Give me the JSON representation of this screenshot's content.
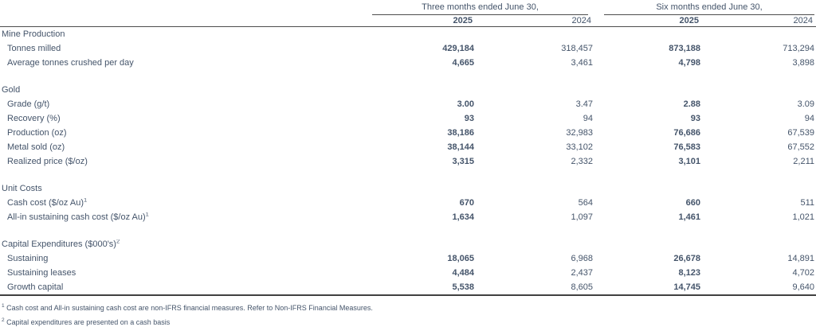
{
  "table": {
    "col_groups": [
      {
        "label": "Three months ended June 30,"
      },
      {
        "label": "Six months ended June 30,"
      }
    ],
    "year_headers": [
      "2025",
      "2024",
      "2025",
      "2024"
    ],
    "sections": [
      {
        "header": "Mine Production",
        "rows": [
          {
            "label": "Tonnes milled",
            "values": [
              "429,184",
              "318,457",
              "873,188",
              "713,294"
            ]
          },
          {
            "label": "Average tonnes crushed per day",
            "values": [
              "4,665",
              "3,461",
              "4,798",
              "3,898"
            ]
          }
        ]
      },
      {
        "header": "Gold",
        "rows": [
          {
            "label": "Grade (g/t)",
            "values": [
              "3.00",
              "3.47",
              "2.88",
              "3.09"
            ]
          },
          {
            "label": "Recovery (%)",
            "values": [
              "93",
              "94",
              "93",
              "94"
            ]
          },
          {
            "label": "Production (oz)",
            "values": [
              "38,186",
              "32,983",
              "76,686",
              "67,539"
            ]
          },
          {
            "label": "Metal sold (oz)",
            "values": [
              "38,144",
              "33,102",
              "76,583",
              "67,552"
            ]
          },
          {
            "label": "Realized price ($/oz)",
            "values": [
              "3,315",
              "2,332",
              "3,101",
              "2,211"
            ]
          }
        ]
      },
      {
        "header": "Unit Costs",
        "rows": [
          {
            "label": "Cash cost ($/oz Au)",
            "sup": "1",
            "values": [
              "670",
              "564",
              "660",
              "511"
            ]
          },
          {
            "label": "All-in sustaining cash cost ($/oz Au)",
            "sup": "1",
            "values": [
              "1,634",
              "1,097",
              "1,461",
              "1,021"
            ]
          }
        ]
      },
      {
        "header": "Capital Expenditures ($000's)",
        "header_sup": "2",
        "rows": [
          {
            "label": "Sustaining",
            "values": [
              "18,065",
              "6,968",
              "26,678",
              "14,891"
            ]
          },
          {
            "label": "Sustaining leases",
            "values": [
              "4,484",
              "2,437",
              "8,123",
              "4,702"
            ]
          },
          {
            "label": "Growth capital",
            "values": [
              "5,538",
              "8,605",
              "14,745",
              "9,640"
            ]
          }
        ]
      }
    ],
    "footnotes": [
      {
        "sup": "1",
        "text": "Cash cost and All-in sustaining cash cost are non-IFRS financial measures. Refer to Non-IFRS Financial Measures."
      },
      {
        "sup": "2",
        "text": "Capital expenditures are presented on a cash basis"
      }
    ]
  },
  "colors": {
    "text": "#44546a",
    "rule": "#4d4d4d",
    "thick_rule": "#404040"
  }
}
